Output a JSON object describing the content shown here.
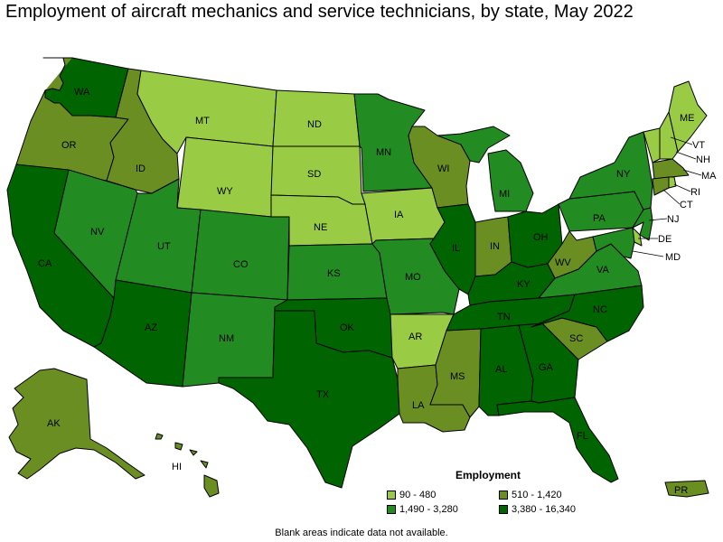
{
  "title": "Employment of aircraft mechanics and service technicians, by state, May 2022",
  "legend": {
    "title": "Employment",
    "bins": [
      {
        "id": "b1",
        "label": "90 - 480",
        "color": "#99cc44"
      },
      {
        "id": "b2",
        "label": "510 - 1,420",
        "color": "#6b8e23"
      },
      {
        "id": "b3",
        "label": "1,490 - 3,280",
        "color": "#228b22"
      },
      {
        "id": "b4",
        "label": "3,380 - 16,340",
        "color": "#006400"
      }
    ]
  },
  "footnote": "Blank areas indicate data not available.",
  "states": [
    {
      "abbr": "WA",
      "bin": "b4"
    },
    {
      "abbr": "OR",
      "bin": "b2"
    },
    {
      "abbr": "CA",
      "bin": "b4"
    },
    {
      "abbr": "ID",
      "bin": "b2"
    },
    {
      "abbr": "NV",
      "bin": "b3"
    },
    {
      "abbr": "MT",
      "bin": "b1"
    },
    {
      "abbr": "WY",
      "bin": "b1"
    },
    {
      "abbr": "UT",
      "bin": "b3"
    },
    {
      "abbr": "AZ",
      "bin": "b4"
    },
    {
      "abbr": "CO",
      "bin": "b3"
    },
    {
      "abbr": "NM",
      "bin": "b3"
    },
    {
      "abbr": "ND",
      "bin": "b1"
    },
    {
      "abbr": "SD",
      "bin": "b1"
    },
    {
      "abbr": "NE",
      "bin": "b1"
    },
    {
      "abbr": "KS",
      "bin": "b3"
    },
    {
      "abbr": "OK",
      "bin": "b4"
    },
    {
      "abbr": "TX",
      "bin": "b4"
    },
    {
      "abbr": "MN",
      "bin": "b3"
    },
    {
      "abbr": "IA",
      "bin": "b1"
    },
    {
      "abbr": "MO",
      "bin": "b3"
    },
    {
      "abbr": "AR",
      "bin": "b1"
    },
    {
      "abbr": "LA",
      "bin": "b2"
    },
    {
      "abbr": "WI",
      "bin": "b2"
    },
    {
      "abbr": "IL",
      "bin": "b4"
    },
    {
      "abbr": "MI",
      "bin": "b3"
    },
    {
      "abbr": "IN",
      "bin": "b2"
    },
    {
      "abbr": "OH",
      "bin": "b4"
    },
    {
      "abbr": "KY",
      "bin": "b4"
    },
    {
      "abbr": "TN",
      "bin": "b4"
    },
    {
      "abbr": "MS",
      "bin": "b2"
    },
    {
      "abbr": "AL",
      "bin": "b4"
    },
    {
      "abbr": "GA",
      "bin": "b4"
    },
    {
      "abbr": "FL",
      "bin": "b4"
    },
    {
      "abbr": "SC",
      "bin": "b2"
    },
    {
      "abbr": "NC",
      "bin": "b4"
    },
    {
      "abbr": "VA",
      "bin": "b3"
    },
    {
      "abbr": "WV",
      "bin": "b2"
    },
    {
      "abbr": "PA",
      "bin": "b3"
    },
    {
      "abbr": "NY",
      "bin": "b3"
    },
    {
      "abbr": "VT",
      "bin": "b1"
    },
    {
      "abbr": "NH",
      "bin": "b1"
    },
    {
      "abbr": "ME",
      "bin": "b1"
    },
    {
      "abbr": "MA",
      "bin": "b2"
    },
    {
      "abbr": "RI",
      "bin": "b1"
    },
    {
      "abbr": "CT",
      "bin": "b2"
    },
    {
      "abbr": "NJ",
      "bin": "b3"
    },
    {
      "abbr": "DE",
      "bin": "b1"
    },
    {
      "abbr": "MD",
      "bin": "b3"
    },
    {
      "abbr": "AK",
      "bin": "b2"
    },
    {
      "abbr": "HI",
      "bin": "b2"
    },
    {
      "abbr": "PR",
      "bin": "b2"
    }
  ]
}
